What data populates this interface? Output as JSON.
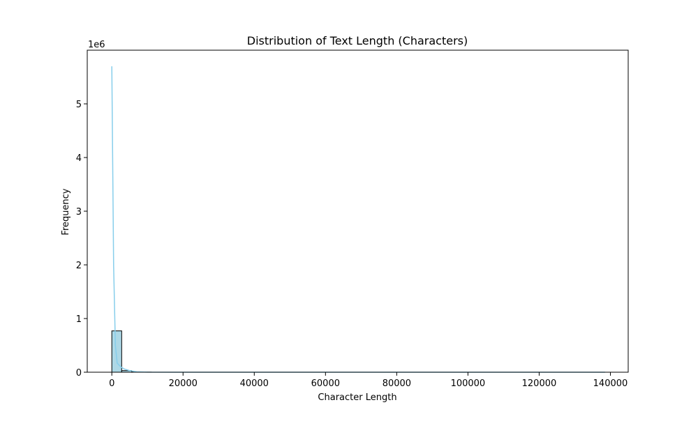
{
  "chart_data": {
    "type": "bar",
    "title": "Distribution of Text Length (Characters)",
    "xlabel": "Character Length",
    "ylabel": "Frequency",
    "y_offset_label": "1e6",
    "xlim": [
      -6900,
      145000
    ],
    "ylim": [
      0,
      6000000
    ],
    "x_ticks": [
      0,
      20000,
      40000,
      60000,
      80000,
      100000,
      120000,
      140000
    ],
    "x_tick_labels": [
      "0",
      "20000",
      "40000",
      "60000",
      "80000",
      "100000",
      "120000",
      "140000"
    ],
    "y_ticks": [
      0,
      1000000,
      2000000,
      3000000,
      4000000,
      5000000
    ],
    "y_tick_labels": [
      "0",
      "1",
      "2",
      "3",
      "4",
      "5"
    ],
    "bins": [
      {
        "x0": 0,
        "x1": 2770,
        "count": 770000
      },
      {
        "x0": 2770,
        "x1": 5540,
        "count": 30000
      },
      {
        "x0": 5540,
        "x1": 8310,
        "count": 6000
      },
      {
        "x0": 8310,
        "x1": 11080,
        "count": 2000
      }
    ],
    "kde": {
      "x": [
        0,
        500,
        1000,
        1500,
        2500,
        3500,
        5000,
        7000,
        10000,
        20000,
        40000,
        80000,
        138500
      ],
      "y": [
        5700000,
        2000000,
        500000,
        170000,
        100000,
        60000,
        30000,
        8000,
        2000,
        300,
        50,
        10,
        0
      ]
    },
    "colors": {
      "bar_fill": "#add8e6",
      "bar_edge": "#000000",
      "kde_line": "#87ceeb"
    },
    "grid": false,
    "legend": "none"
  }
}
